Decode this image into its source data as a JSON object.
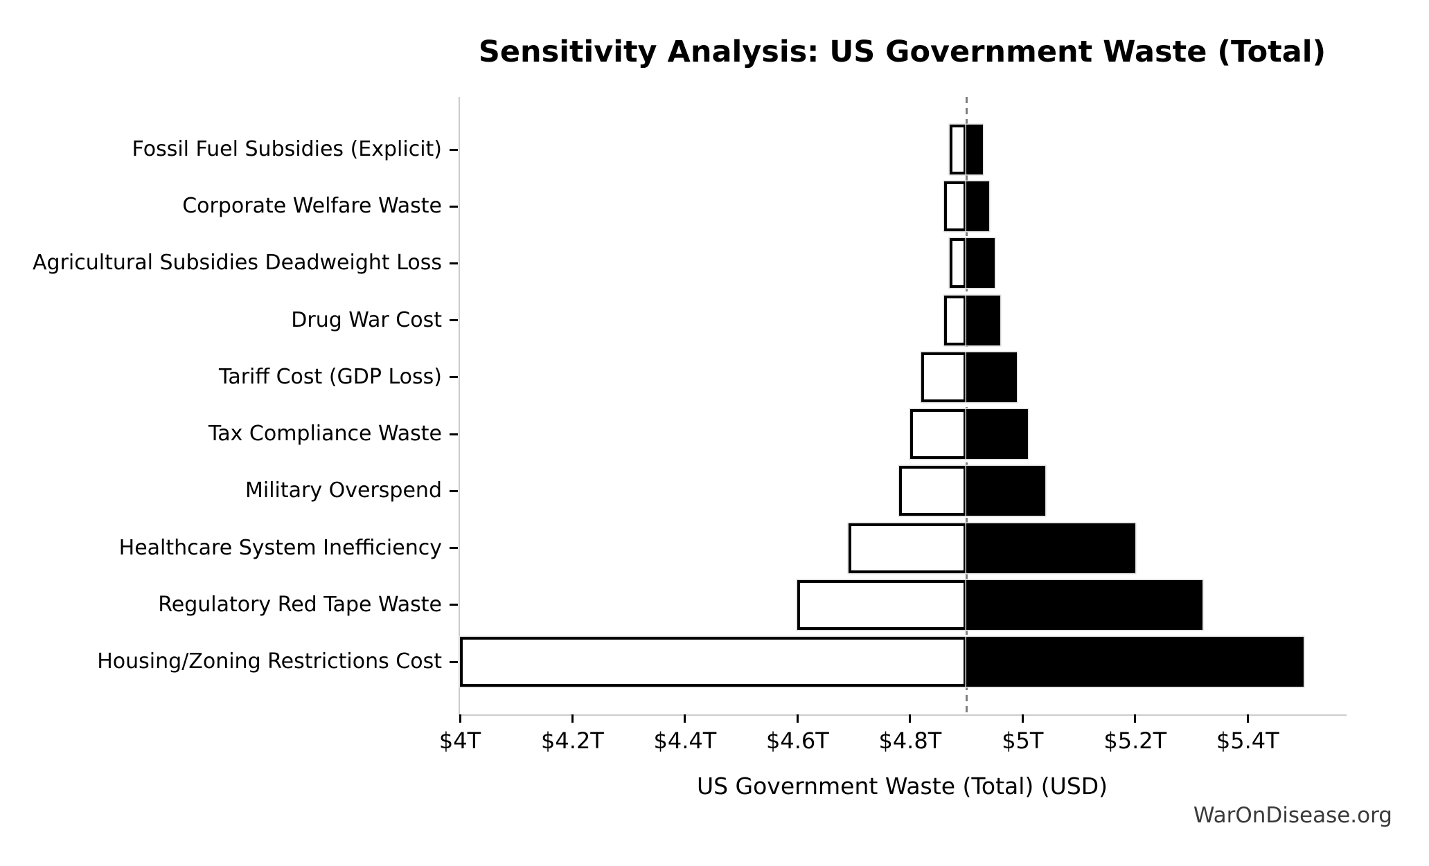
{
  "header": {
    "title": "Sensitivity Analysis: US Government Waste (Total)"
  },
  "footer": {
    "watermark": "WarOnDisease.org"
  },
  "chart_data": {
    "type": "bar",
    "variant": "tornado-sensitivity",
    "title": "Sensitivity Analysis: US Government Waste (Total)",
    "xlabel": "US Government Waste (Total) (USD)",
    "unit": "trillions of USD",
    "baseline_total": 4.9,
    "xlim": [
      4.0,
      5.572
    ],
    "grid": false,
    "legend": null,
    "xticks": [
      {
        "value": 4.0,
        "label": "$4T"
      },
      {
        "value": 4.2,
        "label": "$4.2T"
      },
      {
        "value": 4.4,
        "label": "$4.4T"
      },
      {
        "value": 4.6,
        "label": "$4.6T"
      },
      {
        "value": 4.8,
        "label": "$4.8T"
      },
      {
        "value": 5.0,
        "label": "$5T"
      },
      {
        "value": 5.2,
        "label": "$5.2T"
      },
      {
        "value": 5.4,
        "label": "$5.4T"
      }
    ],
    "rows": [
      {
        "label": "Fossil Fuel Subsidies (Explicit)",
        "low": 4.87,
        "high": 4.93
      },
      {
        "label": "Corporate Welfare Waste",
        "low": 4.86,
        "high": 4.94
      },
      {
        "label": "Agricultural Subsidies Deadweight Loss",
        "low": 4.87,
        "high": 4.95
      },
      {
        "label": "Drug War Cost",
        "low": 4.86,
        "high": 4.96
      },
      {
        "label": "Tariff Cost (GDP Loss)",
        "low": 4.82,
        "high": 4.99
      },
      {
        "label": "Tax Compliance Waste",
        "low": 4.8,
        "high": 5.01
      },
      {
        "label": "Military Overspend",
        "low": 4.78,
        "high": 5.04
      },
      {
        "label": "Healthcare System Inefficiency",
        "low": 4.69,
        "high": 5.2
      },
      {
        "label": "Regulatory Red Tape Waste",
        "low": 4.6,
        "high": 5.32
      },
      {
        "label": "Housing/Zoning Restrictions Cost",
        "low": 4.0,
        "high": 5.5
      }
    ],
    "colors": {
      "bar_high_fill": "#000000",
      "bar_low_fill": "#ffffff",
      "bar_low_border": "#000000",
      "bar_outline": "#dedede",
      "baseline_line": "#7f7f7f",
      "axis_spine": "#cccccc",
      "tick": "#000000",
      "text": "#000000",
      "watermark_text": "#3a3a3a"
    }
  }
}
